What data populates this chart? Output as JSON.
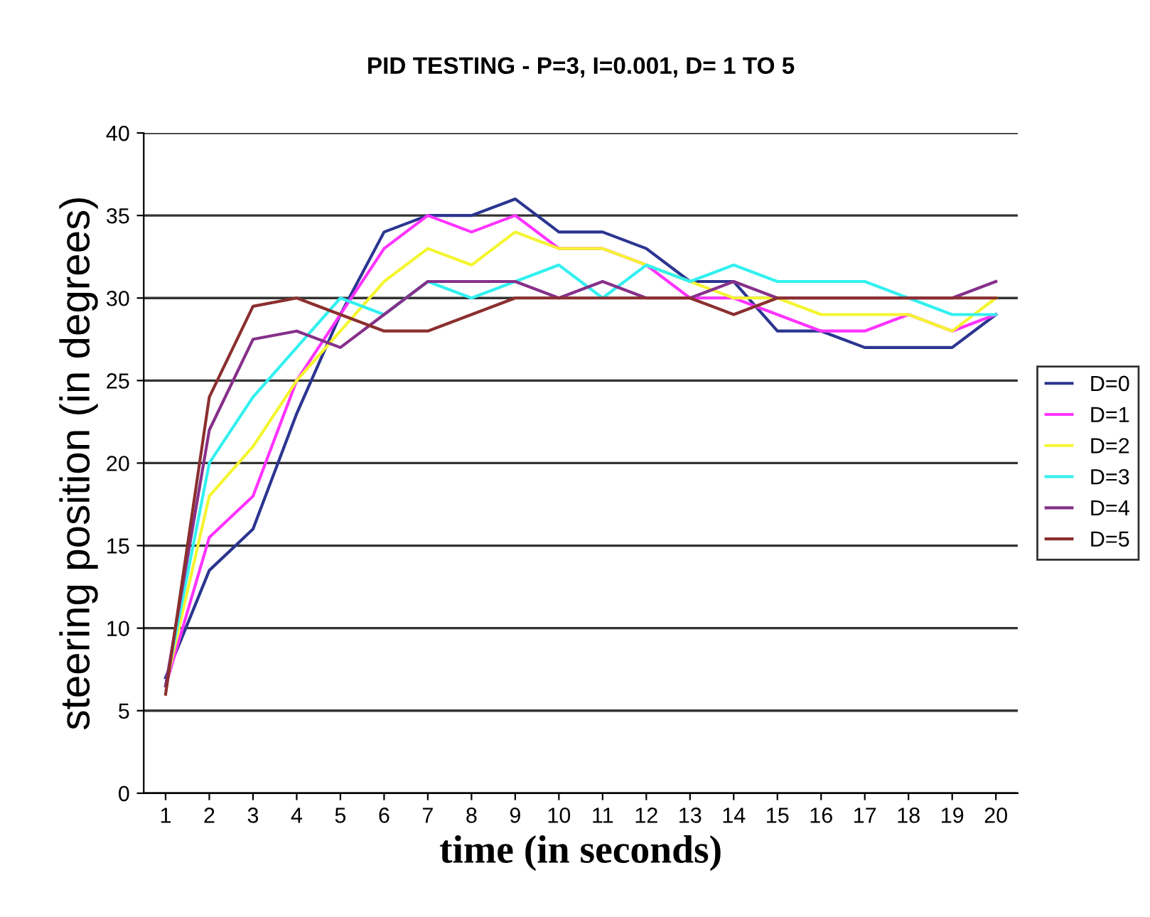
{
  "chart_data": {
    "type": "line",
    "title": "PID TESTING - P=3, I=0.001, D= 1 TO 5",
    "xlabel": "time (in seconds)",
    "ylabel": "steering position (in degrees)",
    "categories": [
      "1",
      "2",
      "3",
      "4",
      "5",
      "6",
      "7",
      "8",
      "9",
      "10",
      "11",
      "12",
      "13",
      "14",
      "15",
      "16",
      "17",
      "18",
      "19",
      "20"
    ],
    "series": [
      {
        "name": "D=0",
        "color": "#2b3590",
        "values": [
          7,
          13.5,
          16,
          23,
          29,
          34,
          35,
          35,
          36,
          34,
          34,
          33,
          31,
          31,
          28,
          28,
          27,
          27,
          27,
          29
        ]
      },
      {
        "name": "D=1",
        "color": "#ff33ff",
        "values": [
          6.5,
          15.5,
          18,
          25,
          29,
          33,
          35,
          34,
          35,
          33,
          33,
          32,
          30,
          30,
          29,
          28,
          28,
          29,
          28,
          29
        ]
      },
      {
        "name": "D=2",
        "color": "#f5f530",
        "values": [
          6.5,
          18,
          21,
          25,
          28,
          31,
          33,
          32,
          34,
          33,
          33,
          32,
          31,
          30,
          30,
          29,
          29,
          29,
          28,
          30
        ]
      },
      {
        "name": "D=3",
        "color": "#33f0f0",
        "values": [
          6.5,
          20,
          24,
          27,
          30,
          29,
          31,
          30,
          31,
          32,
          30,
          32,
          31,
          32,
          31,
          31,
          31,
          30,
          29,
          29
        ]
      },
      {
        "name": "D=4",
        "color": "#86308a",
        "values": [
          6.5,
          22,
          27.5,
          28,
          27,
          29,
          31,
          31,
          31,
          30,
          31,
          30,
          30,
          31,
          30,
          30,
          30,
          30,
          30,
          31
        ]
      },
      {
        "name": "D=5",
        "color": "#8b2f2f",
        "values": [
          6,
          24,
          29.5,
          30,
          29,
          28,
          28,
          29,
          30,
          30,
          30,
          30,
          30,
          29,
          30,
          30,
          30,
          30,
          30,
          30
        ]
      }
    ],
    "ylim": [
      0,
      40
    ],
    "yticks": [
      0,
      5,
      10,
      15,
      20,
      25,
      30,
      35,
      40
    ],
    "grid": "y",
    "legend": "right",
    "marker": "none",
    "line_style": "solid"
  }
}
